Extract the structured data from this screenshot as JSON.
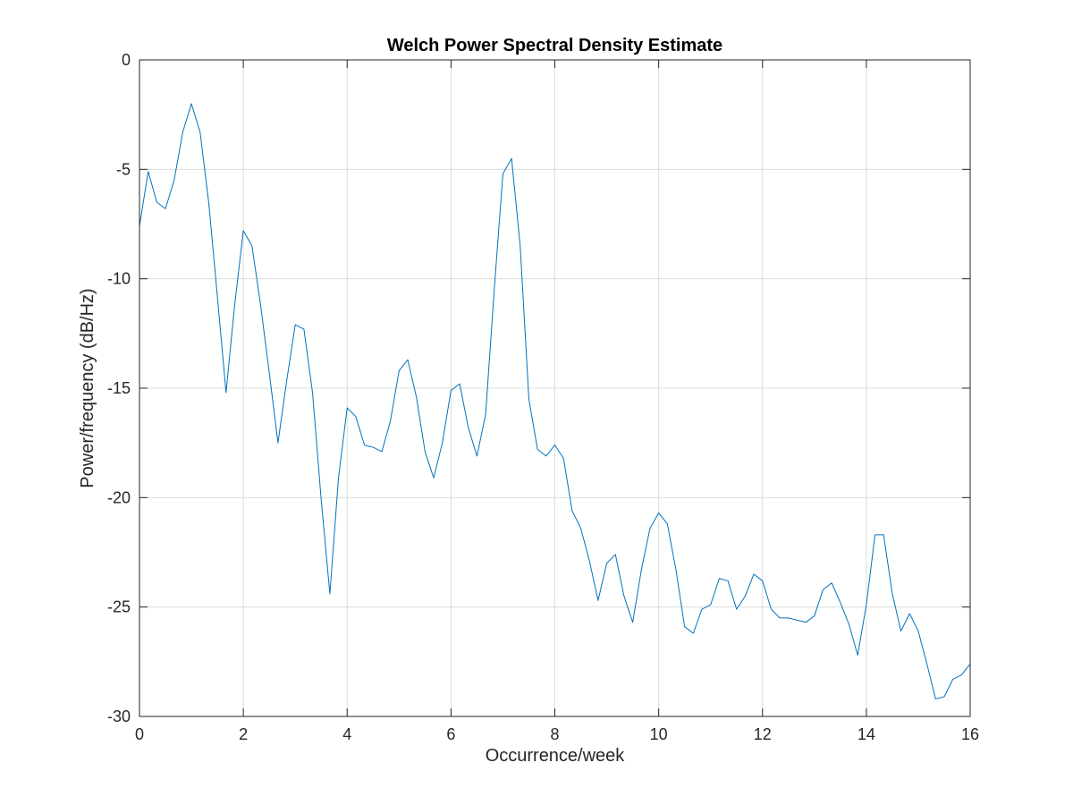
{
  "chart_data": {
    "type": "line",
    "title": "Welch Power Spectral Density Estimate",
    "xlabel": "Occurrence/week",
    "ylabel": "Power/frequency (dB/Hz)",
    "xlim": [
      0,
      16
    ],
    "ylim": [
      -30,
      0
    ],
    "xticks": [
      0,
      2,
      4,
      6,
      8,
      10,
      12,
      14,
      16
    ],
    "yticks": [
      0,
      -5,
      -10,
      -15,
      -20,
      -25,
      -30
    ],
    "xtick_labels": [
      "0",
      "2",
      "4",
      "6",
      "8",
      "10",
      "12",
      "14",
      "16"
    ],
    "ytick_labels": [
      "0",
      "-5",
      "-10",
      "-15",
      "-20",
      "-25",
      "-30"
    ],
    "grid": true,
    "series": [
      {
        "color": "#0072bd",
        "x": [
          0.0,
          0.167,
          0.333,
          0.5,
          0.667,
          0.833,
          1.0,
          1.167,
          1.333,
          1.5,
          1.667,
          1.833,
          2.0,
          2.167,
          2.333,
          2.5,
          2.667,
          2.833,
          3.0,
          3.167,
          3.333,
          3.5,
          3.667,
          3.833,
          4.0,
          4.167,
          4.333,
          4.5,
          4.667,
          4.833,
          5.0,
          5.167,
          5.333,
          5.5,
          5.667,
          5.833,
          6.0,
          6.167,
          6.333,
          6.5,
          6.667,
          6.833,
          7.0,
          7.167,
          7.333,
          7.5,
          7.667,
          7.833,
          8.0,
          8.167,
          8.333,
          8.5,
          8.667,
          8.833,
          9.0,
          9.167,
          9.333,
          9.5,
          9.667,
          9.833,
          10.0,
          10.167,
          10.333,
          10.5,
          10.667,
          10.833,
          11.0,
          11.167,
          11.333,
          11.5,
          11.667,
          11.833,
          12.0,
          12.167,
          12.333,
          12.5,
          12.667,
          12.833,
          13.0,
          13.167,
          13.333,
          13.5,
          13.667,
          13.833,
          14.0,
          14.167,
          14.333,
          14.5,
          14.667,
          14.833,
          15.0,
          15.167,
          15.333,
          15.5,
          15.667,
          15.833,
          16.0
        ],
        "y": [
          -7.6,
          -5.1,
          -6.5,
          -6.8,
          -5.5,
          -3.3,
          -2.0,
          -3.3,
          -6.5,
          -10.8,
          -15.2,
          -11.2,
          -7.8,
          -8.5,
          -11.2,
          -14.3,
          -17.5,
          -14.7,
          -12.1,
          -12.3,
          -15.2,
          -20.1,
          -24.4,
          -19.1,
          -15.9,
          -16.3,
          -17.6,
          -17.7,
          -17.9,
          -16.5,
          -14.2,
          -13.7,
          -15.4,
          -17.9,
          -19.1,
          -17.5,
          -15.1,
          -14.8,
          -16.8,
          -18.1,
          -16.2,
          -10.5,
          -5.2,
          -4.5,
          -8.5,
          -15.5,
          -17.8,
          -18.1,
          -17.6,
          -18.2,
          -20.6,
          -21.4,
          -22.9,
          -24.7,
          -23.0,
          -22.6,
          -24.5,
          -25.7,
          -23.3,
          -21.4,
          -20.7,
          -21.2,
          -23.3,
          -25.9,
          -26.2,
          -25.1,
          -24.9,
          -23.7,
          -23.8,
          -25.1,
          -24.5,
          -23.5,
          -23.8,
          -25.1,
          -25.5,
          -25.5,
          -25.6,
          -25.7,
          -25.4,
          -24.2,
          -23.9,
          -24.8,
          -25.8,
          -27.2,
          -24.9,
          -21.7,
          -21.7,
          -24.4,
          -26.1,
          -25.3,
          -26.1,
          -27.6,
          -29.2,
          -29.1,
          -28.3,
          -28.1,
          -27.6
        ]
      }
    ]
  }
}
